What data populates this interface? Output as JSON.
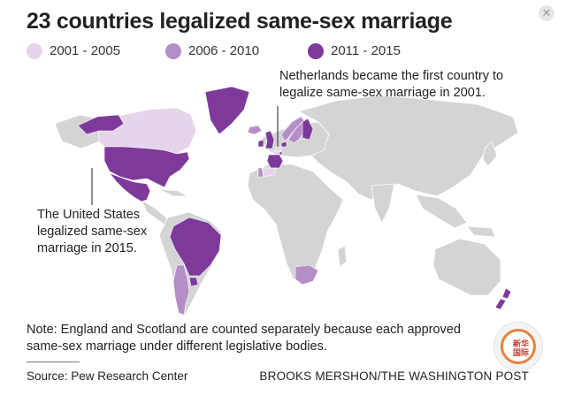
{
  "title": "23 countries legalized same-sex marriage",
  "legend": [
    {
      "label": "2001 - 2005",
      "color": "#e6d5ea"
    },
    {
      "label": "2006 - 2010",
      "color": "#b48ec6"
    },
    {
      "label": "2011 - 2015",
      "color": "#7d3a9b"
    }
  ],
  "colors": {
    "land": "#d4d4d4",
    "ocean": "#ffffff",
    "border": "#ffffff"
  },
  "annotations": {
    "netherlands": [
      "Netherlands became the first country to",
      "legalize same-sex marriage in 2001."
    ],
    "united_states": [
      "The United States",
      "legalized same-sex",
      "marriage in 2015."
    ]
  },
  "note": [
    "Note: England and Scotland are counted separately because each approved",
    "same-sex marriage under different legislative bodies."
  ],
  "source": "Source: Pew Research Center",
  "credit": "BROOKS MERSHON/THE WASHINGTON POST",
  "badge_text": "新华国际",
  "close_icon": "close-icon",
  "regions": [
    {
      "name": "Canada",
      "period": "2001 - 2005"
    },
    {
      "name": "United States",
      "period": "2011 - 2015"
    },
    {
      "name": "Mexico",
      "period": "2011 - 2015"
    },
    {
      "name": "Greenland",
      "period": "2011 - 2015"
    },
    {
      "name": "Brazil",
      "period": "2011 - 2015"
    },
    {
      "name": "Uruguay",
      "period": "2011 - 2015"
    },
    {
      "name": "Argentina",
      "period": "2006 - 2010"
    },
    {
      "name": "Spain",
      "period": "2001 - 2005"
    },
    {
      "name": "Portugal",
      "period": "2006 - 2010"
    },
    {
      "name": "France",
      "period": "2011 - 2015"
    },
    {
      "name": "United Kingdom",
      "period": "2011 - 2015"
    },
    {
      "name": "Ireland",
      "period": "2011 - 2015"
    },
    {
      "name": "Iceland",
      "period": "2006 - 2010"
    },
    {
      "name": "Norway",
      "period": "2006 - 2010"
    },
    {
      "name": "Sweden",
      "period": "2006 - 2010"
    },
    {
      "name": "Finland",
      "period": "2011 - 2015"
    },
    {
      "name": "Denmark",
      "period": "2011 - 2015"
    },
    {
      "name": "Netherlands",
      "period": "2001 - 2005"
    },
    {
      "name": "Belgium",
      "period": "2001 - 2005"
    },
    {
      "name": "Luxembourg",
      "period": "2011 - 2015"
    },
    {
      "name": "South Africa",
      "period": "2006 - 2010"
    },
    {
      "name": "New Zealand",
      "period": "2011 - 2015"
    }
  ]
}
